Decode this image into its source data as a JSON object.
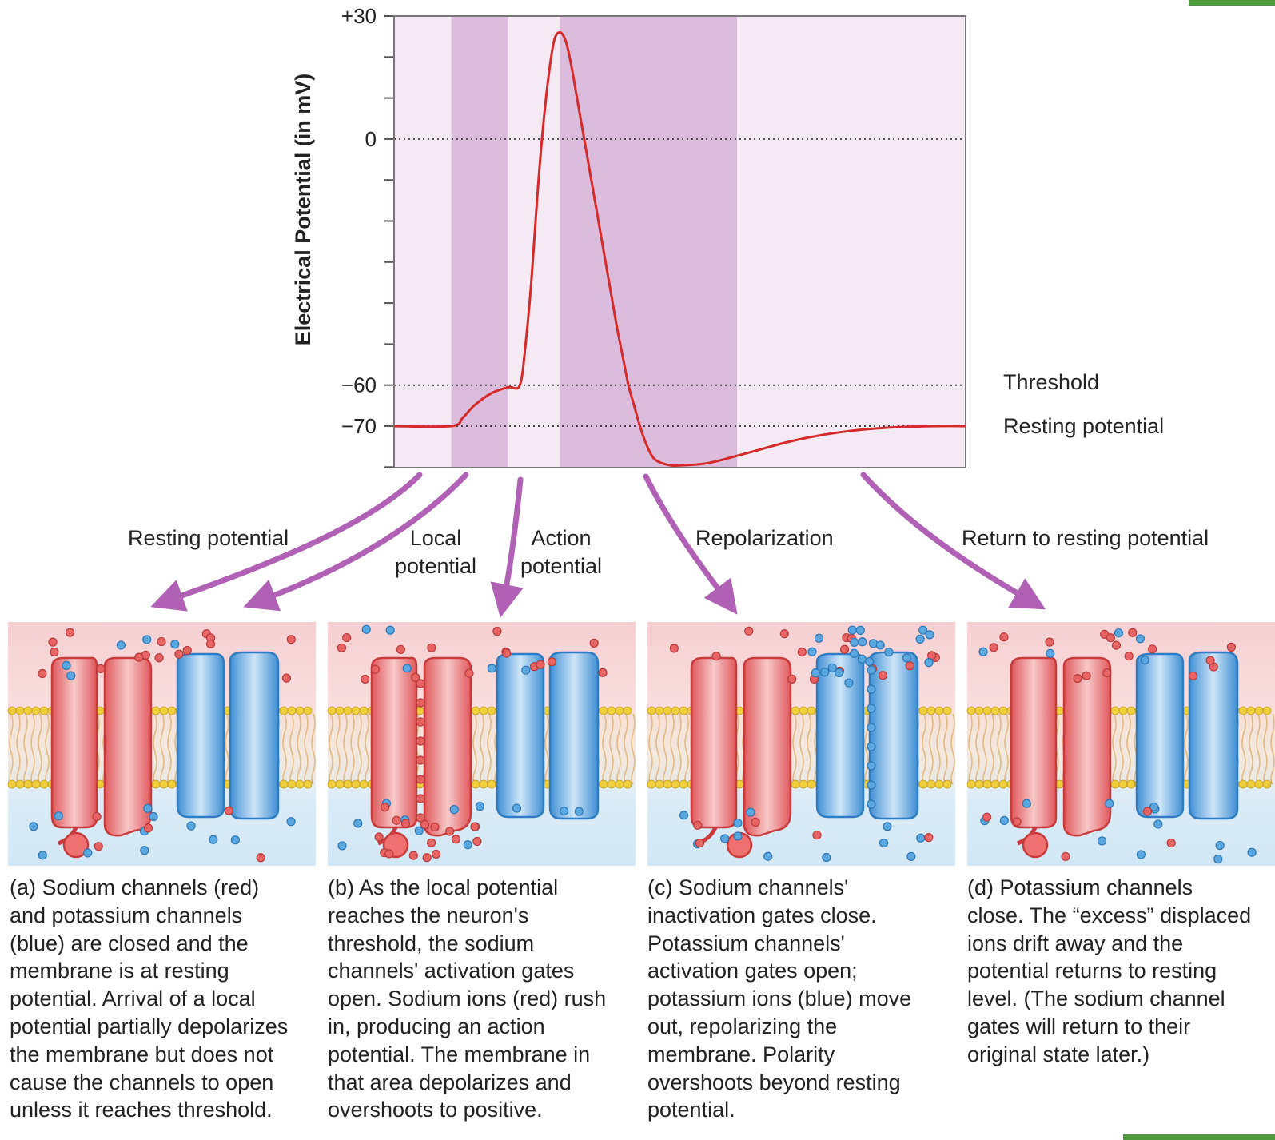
{
  "chart_data": {
    "type": "line",
    "ylabel": "Electrical Potential (in mV)",
    "xlabel": "",
    "y_ticks": [
      {
        "value": 30,
        "label": "+30"
      },
      {
        "value": 0,
        "label": "0"
      },
      {
        "value": -60,
        "label": "−60"
      },
      {
        "value": -70,
        "label": "−70"
      }
    ],
    "ylim": [
      -80,
      30
    ],
    "reference_lines": [
      {
        "value": 0,
        "label": ""
      },
      {
        "value": -60,
        "label": "Threshold"
      },
      {
        "value": -70,
        "label": "Resting potential"
      }
    ],
    "series": [
      {
        "values": [
          [
            0,
            -70
          ],
          [
            10,
            -70
          ],
          [
            12,
            -68
          ],
          [
            14,
            -65
          ],
          [
            17,
            -62
          ],
          [
            20,
            -60.5
          ],
          [
            22,
            -60
          ],
          [
            23,
            -50
          ],
          [
            24,
            -35
          ],
          [
            25,
            -15
          ],
          [
            26,
            2
          ],
          [
            27,
            15
          ],
          [
            28,
            24
          ],
          [
            29,
            26
          ],
          [
            30,
            24
          ],
          [
            31,
            18
          ],
          [
            32,
            10
          ],
          [
            33,
            2
          ],
          [
            34,
            -6
          ],
          [
            35,
            -14
          ],
          [
            36,
            -22
          ],
          [
            37,
            -30
          ],
          [
            38,
            -38
          ],
          [
            39,
            -46
          ],
          [
            40,
            -53
          ],
          [
            41,
            -60
          ],
          [
            42,
            -65
          ],
          [
            43,
            -70
          ],
          [
            44,
            -74
          ],
          [
            45,
            -77
          ],
          [
            46,
            -78.5
          ],
          [
            48,
            -79.5
          ],
          [
            50,
            -79.6
          ],
          [
            55,
            -79
          ],
          [
            62,
            -76.5
          ],
          [
            70,
            -73.5
          ],
          [
            78,
            -71.5
          ],
          [
            86,
            -70.4
          ],
          [
            95,
            -70
          ],
          [
            100,
            -70
          ]
        ]
      }
    ],
    "phase_bands": [
      [
        10,
        20
      ],
      [
        29,
        60
      ]
    ]
  },
  "phase_labels": [
    {
      "label": "Resting potential"
    },
    {
      "label_line1": "Local",
      "label_line2": "potential"
    },
    {
      "label_line1": "Action",
      "label_line2": "potential"
    },
    {
      "label": "Repolarization"
    },
    {
      "label": "Return to resting potential"
    }
  ],
  "panels": [
    {
      "caption": "(a) Sodium channels (red)\nand potassium channels\n(blue) are closed and the\nmembrane is at resting\npotential. Arrival of a local\npotential partially depolarizes\nthe membrane but does not\ncause the channels to open\nunless it reaches threshold."
    },
    {
      "caption": "(b) As the local potential\nreaches the neuron's\nthreshold, the sodium\nchannels' activation gates\nopen. Sodium ions (red) rush\nin, producing an action\npotential. The membrane in\nthat area depolarizes and\novershoots to positive."
    },
    {
      "caption": "(c) Sodium channels'\ninactivation gates close.\nPotassium channels'\nactivation gates open;\npotassium ions (blue) move\nout, repolarizing the\nmembrane. Polarity\novershoots beyond resting\npotential."
    },
    {
      "caption": "(d) Potassium channels\nclose. The “excess” displaced\nions drift away and the\npotential returns to resting\nlevel. (The sodium channel\ngates will return to their\noriginal state later.)"
    }
  ],
  "colors": {
    "curve": "#d42a2a",
    "band_dark": "#dcbcdc",
    "band_light": "#f5e9f3",
    "arrow": "#b061b6",
    "sodium": "#e86464",
    "potassium": "#5ba8e0",
    "membrane_head": "#f0cf3d"
  }
}
